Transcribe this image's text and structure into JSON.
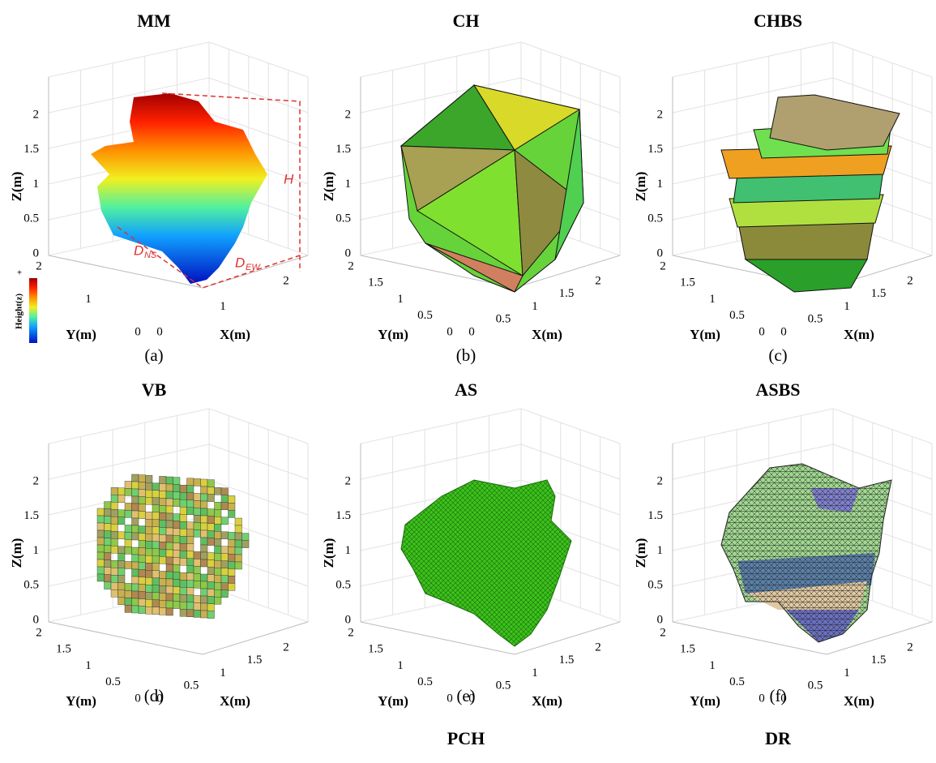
{
  "panels": [
    {
      "title": "MM",
      "caption": "(a)",
      "z_label": "Z(m)",
      "y_label": "Y(m)",
      "x_label": "X(m)",
      "z_ticks": [
        0,
        0.5,
        1,
        1.5,
        2
      ],
      "y_ticks": [
        0,
        1,
        2
      ],
      "x_ticks": [
        0,
        1,
        2
      ]
    },
    {
      "title": "CH",
      "caption": "(b)",
      "z_label": "Z(m)",
      "y_label": "Y(m)",
      "x_label": "X(m)",
      "z_ticks": [
        0,
        0.5,
        1,
        1.5,
        2
      ],
      "y_ticks": [
        0,
        0.5,
        1,
        1.5,
        2
      ],
      "x_ticks": [
        0,
        0.5,
        1,
        1.5,
        2
      ]
    },
    {
      "title": "CHBS",
      "caption": "(c)",
      "z_label": "Z(m)",
      "y_label": "Y(m)",
      "x_label": "X(m)",
      "z_ticks": [
        0,
        0.5,
        1,
        1.5,
        2
      ],
      "y_ticks": [
        0,
        0.5,
        1,
        1.5,
        2
      ],
      "x_ticks": [
        0,
        0.5,
        1,
        1.5,
        2
      ]
    },
    {
      "title": "VB",
      "caption": "(d)",
      "z_label": "Z(m)",
      "y_label": "Y(m)",
      "x_label": "X(m)",
      "z_ticks": [
        0,
        0.5,
        1,
        1.5,
        2
      ],
      "y_ticks": [
        0,
        0.5,
        1,
        1.5,
        2
      ],
      "x_ticks": [
        0,
        0.5,
        1,
        1.5,
        2
      ]
    },
    {
      "title": "AS",
      "caption": "(e)",
      "z_label": "Z(m)",
      "y_label": "Y(m)",
      "x_label": "X(m)",
      "z_ticks": [
        0,
        0.5,
        1,
        1.5,
        2
      ],
      "y_ticks": [
        0,
        0.5,
        1,
        1.5,
        2
      ],
      "x_ticks": [
        0,
        0.5,
        1,
        1.5,
        2
      ]
    },
    {
      "title": "ASBS",
      "caption": "(f)",
      "z_label": "Z(m)",
      "y_label": "Y(m)",
      "x_label": "X(m)",
      "z_ticks": [
        0,
        0.5,
        1,
        1.5,
        2
      ],
      "y_ticks": [
        0,
        0.5,
        1,
        1.5,
        2
      ],
      "x_ticks": [
        0,
        0.5,
        1,
        1.5,
        2
      ]
    }
  ],
  "annotations": {
    "h": "H",
    "d_ns": "D",
    "d_ns_sub": "NS",
    "d_ew": "D",
    "d_ew_sub": "EW",
    "colorbar_label": "Height(z)",
    "colorbar_plus": "+"
  },
  "footer": {
    "left": "PCH",
    "right": "DR"
  }
}
